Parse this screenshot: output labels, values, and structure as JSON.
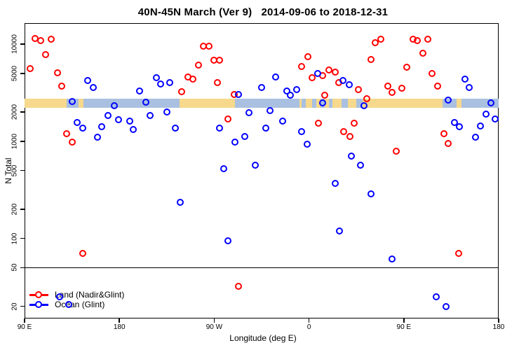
{
  "title": "40N-45N March (Ver 9)   2014-09-06 to 2018-12-31",
  "chart_data": {
    "type": "scatter",
    "title": "40N-45N March (Ver 9)   2014-09-06 to 2018-12-31",
    "xlabel": "Longitude (deg E)",
    "ylabel": "N Total",
    "x_axis_note": "longitude in deg E plotted continuously eastward from 90E (90..540), wrapping through 180, 90W, 0, 90E to 180",
    "xlim": [
      90,
      540
    ],
    "ylim": [
      15,
      16500
    ],
    "y_scale": "log",
    "grid": false,
    "x_ticks": [
      {
        "value": 90,
        "label": "90 E"
      },
      {
        "value": 180,
        "label": "180"
      },
      {
        "value": 270,
        "label": "90 W"
      },
      {
        "value": 360,
        "label": "0"
      },
      {
        "value": 450,
        "label": "90 E"
      },
      {
        "value": 540,
        "label": "180"
      }
    ],
    "y_ticks": [
      {
        "value": 20,
        "label": "20"
      },
      {
        "value": 50,
        "label": "50"
      },
      {
        "value": 100,
        "label": "100"
      },
      {
        "value": 200,
        "label": "200"
      },
      {
        "value": 500,
        "label": "500"
      },
      {
        "value": 1000,
        "label": "1000"
      },
      {
        "value": 2000,
        "label": "2000"
      },
      {
        "value": 5000,
        "label": "5000"
      },
      {
        "value": 10000,
        "label": "10000"
      }
    ],
    "reference_line_y": 50,
    "surface_band": {
      "n_range": [
        2200,
        2760
      ],
      "colors": {
        "land": "#f6d98c",
        "ocean": "#a9c0e0"
      },
      "segments": [
        {
          "from": 90,
          "to": 130,
          "surface": "land"
        },
        {
          "from": 130,
          "to": 141,
          "surface": "ocean"
        },
        {
          "from": 141,
          "to": 146,
          "surface": "land"
        },
        {
          "from": 146,
          "to": 237,
          "surface": "ocean"
        },
        {
          "from": 237,
          "to": 290,
          "surface": "land"
        },
        {
          "from": 290,
          "to": 351,
          "surface": "ocean"
        },
        {
          "from": 351,
          "to": 487,
          "surface": "land"
        },
        {
          "from": 353,
          "to": 357,
          "surface": "ocean"
        },
        {
          "from": 363,
          "to": 367,
          "surface": "ocean"
        },
        {
          "from": 371,
          "to": 375,
          "surface": "ocean"
        },
        {
          "from": 379,
          "to": 382,
          "surface": "ocean"
        },
        {
          "from": 391,
          "to": 397,
          "surface": "ocean"
        },
        {
          "from": 405,
          "to": 411,
          "surface": "ocean"
        },
        {
          "from": 487,
          "to": 500,
          "surface": "ocean"
        },
        {
          "from": 500,
          "to": 505,
          "surface": "land"
        },
        {
          "from": 505,
          "to": 540,
          "surface": "ocean"
        }
      ]
    },
    "series": [
      {
        "name": "Land (Nadir&Glint)",
        "color": "#ff0000",
        "points": [
          [
            100,
            11400
          ],
          [
            105,
            10900
          ],
          [
            115,
            11200
          ],
          [
            110,
            7800
          ],
          [
            95,
            5600
          ],
          [
            121,
            5100
          ],
          [
            125,
            3700
          ],
          [
            130,
            1190
          ],
          [
            135,
            980
          ],
          [
            145,
            70
          ],
          [
            239,
            3230
          ],
          [
            245,
            4580
          ],
          [
            250,
            4360
          ],
          [
            255,
            6080
          ],
          [
            260,
            9500
          ],
          [
            265,
            9500
          ],
          [
            270,
            6830
          ],
          [
            275,
            6830
          ],
          [
            273,
            4010
          ],
          [
            283,
            1690
          ],
          [
            289,
            3030
          ],
          [
            293,
            32
          ],
          [
            353,
            5880
          ],
          [
            359,
            7410
          ],
          [
            363,
            4510
          ],
          [
            369,
            1530
          ],
          [
            373,
            4730
          ],
          [
            375,
            2970
          ],
          [
            379,
            5400
          ],
          [
            385,
            5150
          ],
          [
            388,
            4010
          ],
          [
            393,
            1250
          ],
          [
            399,
            1120
          ],
          [
            403,
            1530
          ],
          [
            407,
            3400
          ],
          [
            415,
            2730
          ],
          [
            419,
            6940
          ],
          [
            423,
            10300
          ],
          [
            428,
            11200
          ],
          [
            435,
            3700
          ],
          [
            439,
            3180
          ],
          [
            443,
            790
          ],
          [
            448,
            3510
          ],
          [
            453,
            5780
          ],
          [
            459,
            11300
          ],
          [
            463,
            10900
          ],
          [
            468,
            8050
          ],
          [
            473,
            11300
          ],
          [
            477,
            4980
          ],
          [
            482,
            3700
          ],
          [
            488,
            1190
          ],
          [
            492,
            945
          ],
          [
            502,
            70
          ]
        ]
      },
      {
        "name": "Ocean (Glint)",
        "color": "#0000ff",
        "points": [
          [
            123,
            25
          ],
          [
            132,
            21
          ],
          [
            135,
            2560
          ],
          [
            140,
            1560
          ],
          [
            145,
            1360
          ],
          [
            150,
            4220
          ],
          [
            155,
            3570
          ],
          [
            159,
            1100
          ],
          [
            163,
            1410
          ],
          [
            169,
            1840
          ],
          [
            175,
            2320
          ],
          [
            179,
            1660
          ],
          [
            190,
            1610
          ],
          [
            193,
            1320
          ],
          [
            199,
            3280
          ],
          [
            205,
            2520
          ],
          [
            209,
            1840
          ],
          [
            215,
            4510
          ],
          [
            219,
            3880
          ],
          [
            225,
            2000
          ],
          [
            228,
            4010
          ],
          [
            233,
            1360
          ],
          [
            238,
            234
          ],
          [
            275,
            1360
          ],
          [
            279,
            520
          ],
          [
            283,
            95
          ],
          [
            290,
            980
          ],
          [
            293,
            3030
          ],
          [
            299,
            1120
          ],
          [
            303,
            1960
          ],
          [
            309,
            565
          ],
          [
            315,
            3570
          ],
          [
            319,
            1360
          ],
          [
            323,
            2060
          ],
          [
            328,
            4580
          ],
          [
            335,
            1610
          ],
          [
            339,
            3280
          ],
          [
            342,
            2970
          ],
          [
            348,
            3400
          ],
          [
            353,
            1250
          ],
          [
            358,
            935
          ],
          [
            368,
            4980
          ],
          [
            373,
            2490
          ],
          [
            385,
            366
          ],
          [
            389,
            119
          ],
          [
            392,
            4220
          ],
          [
            398,
            3820
          ],
          [
            400,
            700
          ],
          [
            409,
            565
          ],
          [
            412,
            2320
          ],
          [
            419,
            290
          ],
          [
            439,
            61
          ],
          [
            481,
            25
          ],
          [
            490,
            20
          ],
          [
            492,
            2650
          ],
          [
            498,
            1560
          ],
          [
            503,
            1410
          ],
          [
            508,
            4370
          ],
          [
            512,
            3570
          ],
          [
            518,
            1100
          ],
          [
            523,
            1430
          ],
          [
            528,
            1900
          ],
          [
            533,
            2490
          ],
          [
            537,
            1690
          ]
        ]
      }
    ],
    "legend": {
      "position": "bottom-left",
      "items": [
        "Land (Nadir&Glint)",
        "Ocean (Glint)"
      ]
    }
  }
}
